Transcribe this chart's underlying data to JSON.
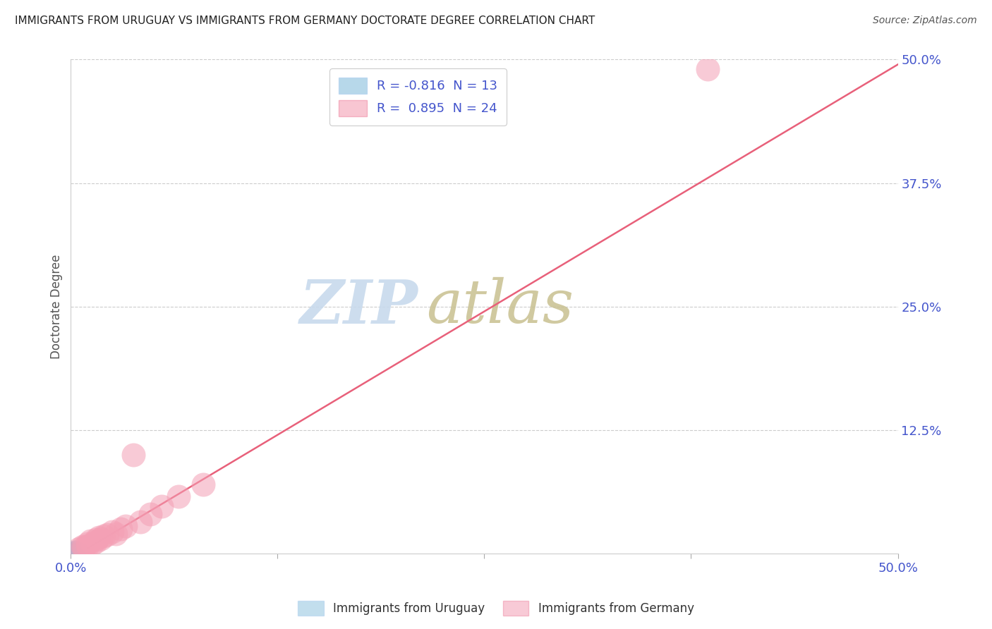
{
  "title": "IMMIGRANTS FROM URUGUAY VS IMMIGRANTS FROM GERMANY DOCTORATE DEGREE CORRELATION CHART",
  "source": "Source: ZipAtlas.com",
  "ylabel": "Doctorate Degree",
  "xlim": [
    0.0,
    0.5
  ],
  "ylim": [
    0.0,
    0.5
  ],
  "xticks": [
    0.0,
    0.125,
    0.25,
    0.375,
    0.5
  ],
  "yticks": [
    0.0,
    0.125,
    0.25,
    0.375,
    0.5
  ],
  "xticklabels": [
    "0.0%",
    "",
    "",
    "",
    "50.0%"
  ],
  "yticklabels": [
    "",
    "12.5%",
    "25.0%",
    "37.5%",
    "50.0%"
  ],
  "uruguay_color": "#87BEDD",
  "germany_color": "#F4A0B5",
  "uruguay_line_color": "#87BEDD",
  "germany_line_color": "#E8607A",
  "background_color": "#ffffff",
  "grid_color": "#cccccc",
  "tick_label_color": "#4455CC",
  "watermark_zip_color": "#C5D8EC",
  "watermark_atlas_color": "#C8C090",
  "germany_line_x": [
    0.0,
    0.5
  ],
  "germany_line_y": [
    -0.005,
    0.495
  ],
  "uruguay_line_x": [
    -0.002,
    0.012
  ],
  "uruguay_line_y": [
    0.004,
    -0.001
  ],
  "uru_x": [
    0.001,
    0.001,
    0.001,
    0.002,
    0.002,
    0.002,
    0.003,
    0.003,
    0.003,
    0.004,
    0.004,
    0.005,
    0.006
  ],
  "uru_y": [
    0.003,
    0.002,
    0.001,
    0.004,
    0.003,
    0.001,
    0.004,
    0.002,
    0.001,
    0.003,
    0.001,
    0.002,
    0.001
  ],
  "ger_x": [
    0.005,
    0.007,
    0.008,
    0.01,
    0.01,
    0.012,
    0.013,
    0.015,
    0.015,
    0.017,
    0.018,
    0.02,
    0.022,
    0.025,
    0.027,
    0.03,
    0.033,
    0.038,
    0.042,
    0.048,
    0.055,
    0.065,
    0.08,
    0.385
  ],
  "ger_y": [
    0.005,
    0.007,
    0.006,
    0.01,
    0.008,
    0.013,
    0.01,
    0.014,
    0.012,
    0.016,
    0.015,
    0.018,
    0.019,
    0.022,
    0.02,
    0.025,
    0.028,
    0.1,
    0.032,
    0.04,
    0.048,
    0.058,
    0.07,
    0.49
  ]
}
